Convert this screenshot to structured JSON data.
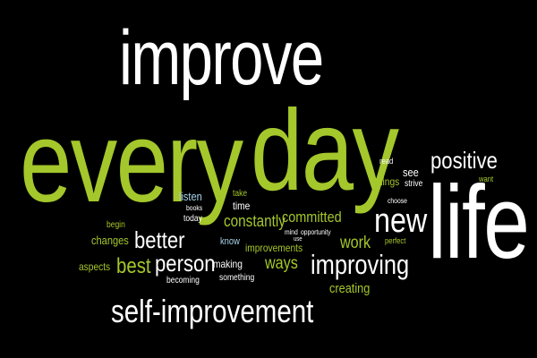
{
  "words": {
    "improve": "improve",
    "every": "every",
    "day": "day",
    "life": "life",
    "new": "new",
    "positive": "positive",
    "self_improvement": "self-improvement",
    "improving": "improving",
    "better": "better",
    "person": "person",
    "best": "best",
    "constantly": "constantly",
    "committed": "committed",
    "work": "work",
    "ways": "ways",
    "improvements": "improvements",
    "creating": "creating",
    "changes": "changes",
    "aspects": "aspects",
    "making": "making",
    "something": "something",
    "becoming": "becoming",
    "begin": "begin",
    "today": "today",
    "books": "books",
    "listen": "listen",
    "take": "take",
    "time": "time",
    "know": "know",
    "use": "use",
    "mind": "mind",
    "opportunity": "opportunity",
    "read": "read",
    "see": "see",
    "things": "things",
    "strive": "strive",
    "choose": "choose",
    "want": "want",
    "perfect": "perfect"
  },
  "colors": {
    "background": "#000000",
    "white": "#ffffff",
    "green": "#a4c72b",
    "light_blue": "#a8d4ea"
  }
}
